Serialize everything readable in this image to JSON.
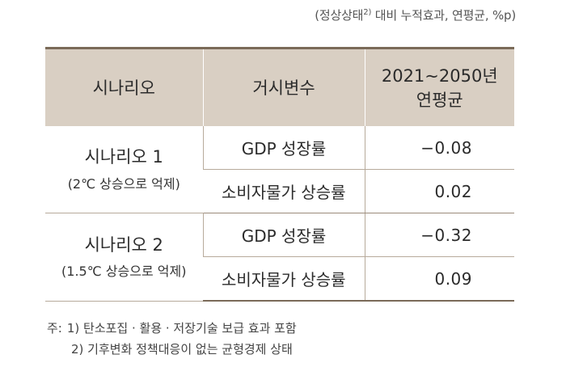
{
  "unit_note": {
    "prefix": "(정상상태",
    "sup": "2)",
    "suffix": " 대비 누적효과, 연평균, %p)"
  },
  "table": {
    "headers": {
      "scenario": "시나리오",
      "variable": "거시변수",
      "period_line1": "2021∼2050년",
      "period_line2": "연평균"
    },
    "groups": [
      {
        "name": "시나리오 1",
        "sub": "(2℃ 상승으로 억제)",
        "rows": [
          {
            "variable": "GDP 성장률",
            "value": "−0.08"
          },
          {
            "variable": "소비자물가 상승률",
            "value": "0.02"
          }
        ]
      },
      {
        "name": "시나리오 2",
        "sub": "(1.5℃ 상승으로 억제)",
        "rows": [
          {
            "variable": "GDP 성장률",
            "value": "−0.32"
          },
          {
            "variable": "소비자물가 상승률",
            "value": "0.09"
          }
        ]
      }
    ]
  },
  "footnotes": {
    "prefix": "주:",
    "note1": "1) 탄소포집 · 활용 · 저장기술 보급 효과 포함",
    "note2": "2) 기후변화 정책대응이 없는 균형경제 상태"
  }
}
